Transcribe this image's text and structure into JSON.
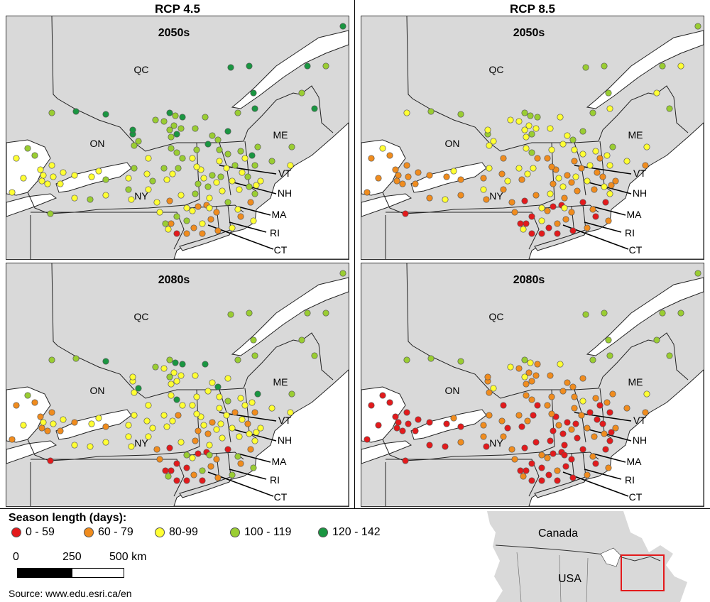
{
  "columns": [
    {
      "title": "RCP 4.5"
    },
    {
      "title": "RCP 8.5"
    }
  ],
  "panels": [
    {
      "decade": "2050s",
      "scenario": "RCP 4.5"
    },
    {
      "decade": "2050s",
      "scenario": "RCP 8.5"
    },
    {
      "decade": "2080s",
      "scenario": "RCP 4.5"
    },
    {
      "decade": "2080s",
      "scenario": "RCP 8.5"
    }
  ],
  "region_labels": {
    "qc": "QC",
    "on": "ON",
    "me": "ME",
    "ny": "NY",
    "vt": "VT",
    "nh": "NH",
    "ma": "MA",
    "ri": "RI",
    "ct": "CT"
  },
  "legend": {
    "title": "Season length (days):",
    "classes": [
      {
        "label": "0 - 59",
        "color": "#e31a1c"
      },
      {
        "label": "60 - 79",
        "color": "#f08c1e"
      },
      {
        "label": "80-99",
        "color": "#ffff33"
      },
      {
        "label": "100 - 119",
        "color": "#9acd32"
      },
      {
        "label": "120 - 142",
        "color": "#1a9641"
      }
    ]
  },
  "scale": {
    "labels": [
      "0",
      "250",
      "500 km"
    ]
  },
  "source": "Source: www.edu.esri.ca/en",
  "inset": {
    "canada": "Canada",
    "usa": "USA",
    "highlight_color": "#e31a1c"
  }
}
